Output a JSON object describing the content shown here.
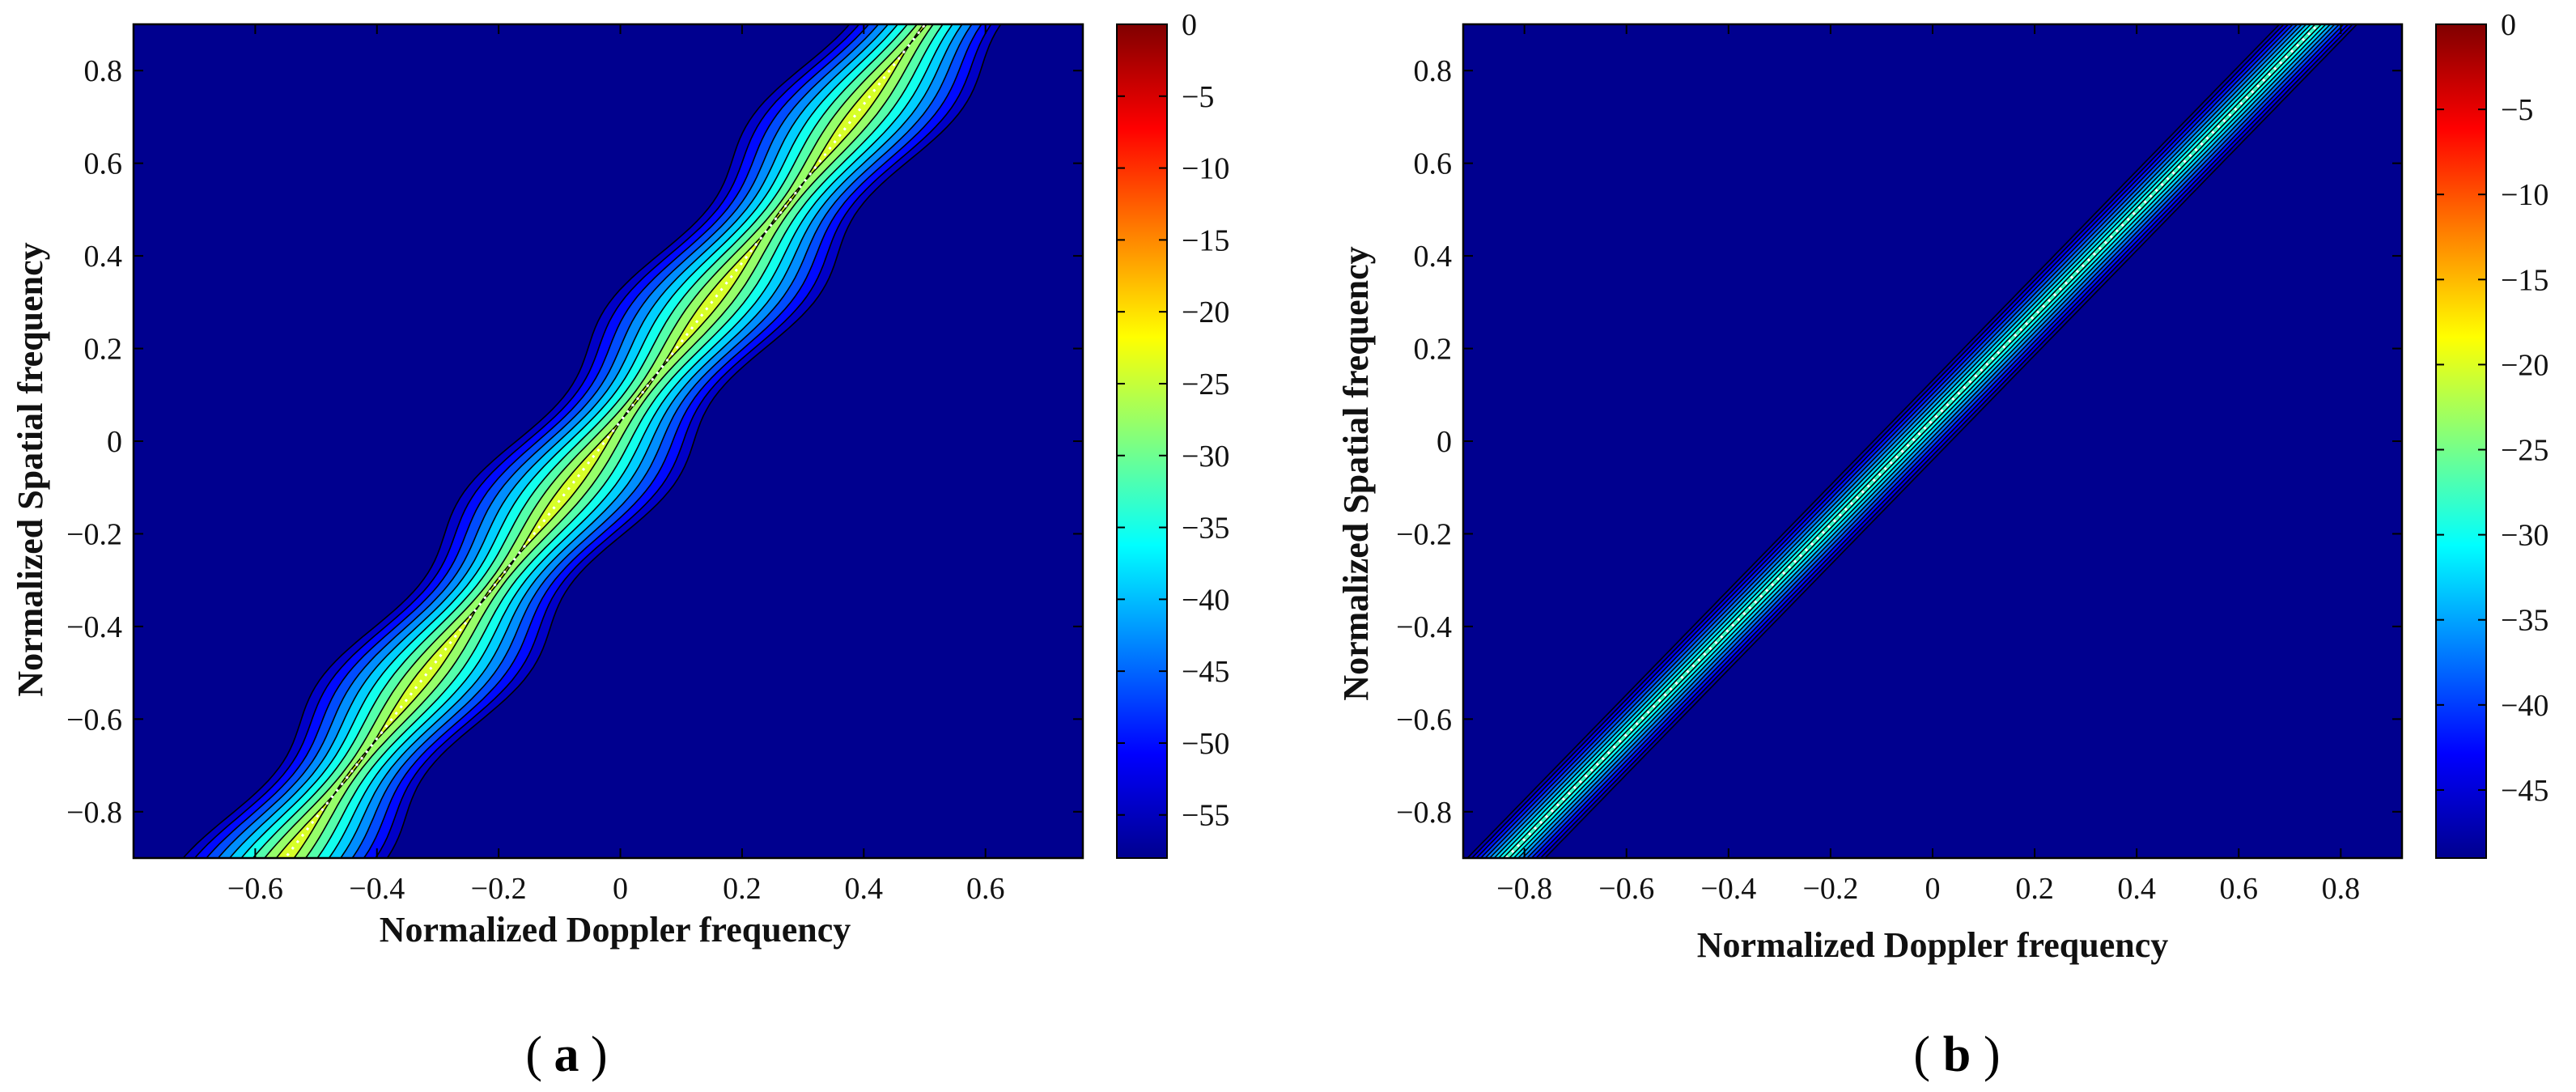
{
  "chart_data": [
    {
      "type": "heatmap",
      "subtype": "filled-contour",
      "panel_label": "(a)",
      "panel_letter": "a",
      "xlabel": "Normalized Doppler frequency",
      "ylabel": "Normalized Spatial frequency",
      "xlim": [
        -0.8,
        0.76
      ],
      "ylim": [
        -0.9,
        0.9
      ],
      "xticks": [
        -0.6,
        -0.4,
        -0.2,
        0,
        0.2,
        0.4,
        0.6
      ],
      "xtick_labels": [
        "−0.6",
        "−0.4",
        "−0.2",
        "0",
        "0.2",
        "0.4",
        "0.6"
      ],
      "yticks": [
        0.8,
        0.6,
        0.4,
        0.2,
        0,
        -0.2,
        -0.4,
        -0.6,
        -0.8
      ],
      "ytick_labels": [
        "0.8",
        "0.6",
        "0.4",
        "0.2",
        "0",
        "−0.2",
        "−0.4",
        "−0.6",
        "−0.8"
      ],
      "colorbar": {
        "colormap": "jet",
        "range": [
          -58,
          0
        ],
        "ticks": [
          0,
          -5,
          -10,
          -15,
          -20,
          -25,
          -30,
          -35,
          -40,
          -45,
          -50,
          -55
        ],
        "tick_labels": [
          "0",
          "−5",
          "−10",
          "−15",
          "−20",
          "−25",
          "−30",
          "−35",
          "−40",
          "−45",
          "−50",
          "−55"
        ]
      },
      "ridge": {
        "description": "clutter ridge along a diagonal line, wavy",
        "slope": 1.62,
        "fd_at_top": 0.53,
        "fd_at_bottom": -0.58,
        "wavy": true,
        "peak_level": -24,
        "background_level": -58
      }
    },
    {
      "type": "heatmap",
      "subtype": "filled-contour",
      "panel_label": "(b)",
      "panel_letter": "b",
      "xlabel": "Normalized Doppler frequency",
      "ylabel": "Normalized Spatial frequency",
      "xlim": [
        -0.92,
        0.92
      ],
      "ylim": [
        -0.9,
        0.9
      ],
      "xticks": [
        -0.8,
        -0.6,
        -0.4,
        -0.2,
        0,
        0.2,
        0.4,
        0.6,
        0.8
      ],
      "xtick_labels": [
        "−0.8",
        "−0.6",
        "−0.4",
        "−0.2",
        "0",
        "0.2",
        "0.4",
        "0.6",
        "0.8"
      ],
      "yticks": [
        0.8,
        0.6,
        0.4,
        0.2,
        0,
        -0.2,
        -0.4,
        -0.6,
        -0.8
      ],
      "ytick_labels": [
        "0.8",
        "0.6",
        "0.4",
        "0.2",
        "0",
        "−0.2",
        "−0.4",
        "−0.6",
        "−0.8"
      ],
      "colorbar": {
        "colormap": "jet",
        "range": [
          -49,
          0
        ],
        "ticks": [
          0,
          -5,
          -10,
          -15,
          -20,
          -25,
          -30,
          -35,
          -40,
          -45
        ],
        "tick_labels": [
          "0",
          "−5",
          "−10",
          "−15",
          "−20",
          "−25",
          "−30",
          "−35",
          "−40",
          "−45"
        ]
      },
      "ridge": {
        "description": "straight clutter ridge along diagonal",
        "slope": 1.0,
        "fd_at_top": 0.8,
        "fd_at_bottom": -0.88,
        "wavy": false,
        "peak_level": -28,
        "background_level": -49
      }
    }
  ]
}
